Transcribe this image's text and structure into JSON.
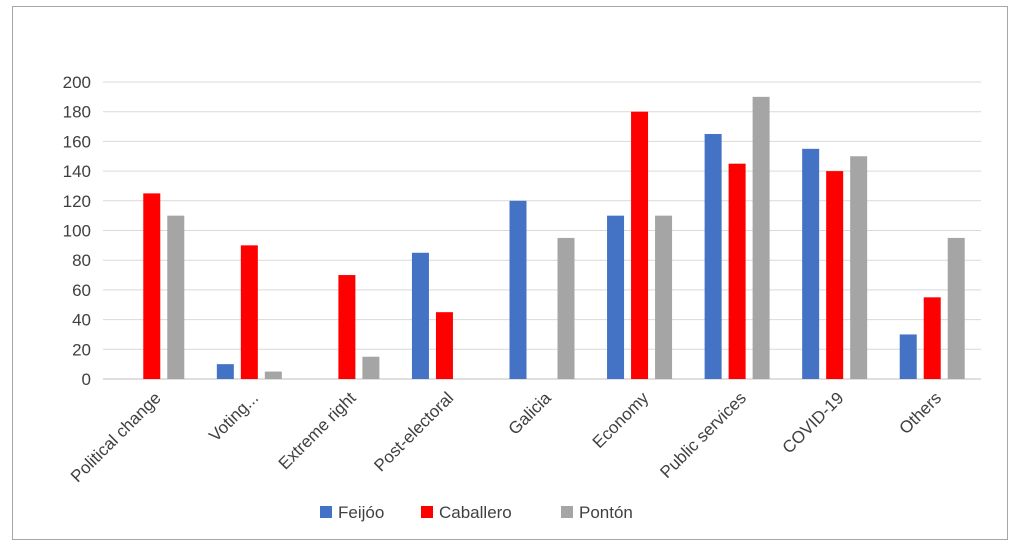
{
  "chart_data": {
    "type": "bar",
    "categories": [
      "Political change",
      "Voting...",
      "Extreme right",
      "Post-electoral",
      "Galicia",
      "Economy",
      "Public services",
      "COVID-19",
      "Others"
    ],
    "series": [
      {
        "name": "Feijóo",
        "color": "#4472c4",
        "values": [
          0,
          10,
          0,
          85,
          120,
          110,
          165,
          155,
          30
        ]
      },
      {
        "name": "Caballero",
        "color": "#ff0000",
        "values": [
          125,
          90,
          70,
          45,
          0,
          180,
          145,
          140,
          55
        ]
      },
      {
        "name": "Pontón",
        "color": "#a5a5a5",
        "values": [
          110,
          5,
          15,
          0,
          95,
          110,
          190,
          150,
          95
        ]
      }
    ],
    "yticks": [
      "0",
      "20",
      "40",
      "60",
      "80",
      "100",
      "120",
      "140",
      "160",
      "180",
      "200"
    ],
    "ylim": [
      0,
      200
    ],
    "grid": true,
    "legend": "bottom",
    "title": "",
    "xlabel": "",
    "ylabel": ""
  }
}
